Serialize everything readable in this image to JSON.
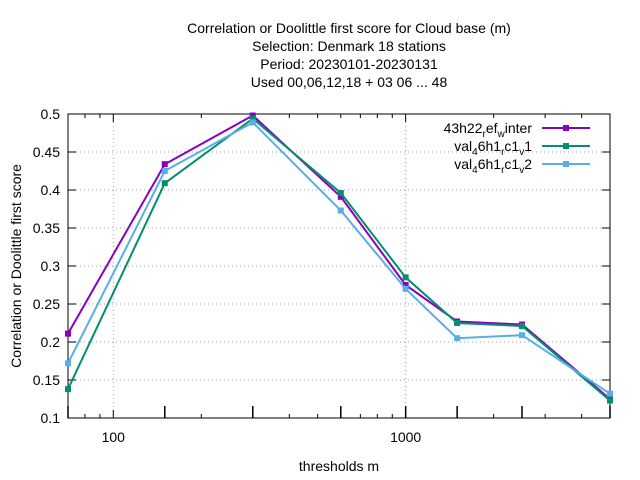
{
  "chart_data": {
    "type": "line",
    "title_lines": [
      "Correlation or Doolittle first score  for Cloud base (m)",
      "Selection: Denmark     18 stations",
      "Period: 20230101-20230131",
      "Used  00,06,12,18  + 03 06 ... 48"
    ],
    "xlabel": "thresholds m",
    "ylabel": "Correlation or Doolittle first score",
    "xscale": "log",
    "xlim": [
      70,
      5000
    ],
    "ylim": [
      0.1,
      0.5
    ],
    "x_ticks": [
      {
        "value": 100,
        "label": "100"
      },
      {
        "value": 1000,
        "label": "1000"
      }
    ],
    "y_ticks": [
      {
        "value": 0.1,
        "label": "0.1"
      },
      {
        "value": 0.15,
        "label": "0.15"
      },
      {
        "value": 0.2,
        "label": "0.2"
      },
      {
        "value": 0.25,
        "label": "0.25"
      },
      {
        "value": 0.3,
        "label": "0.3"
      },
      {
        "value": 0.35,
        "label": "0.35"
      },
      {
        "value": 0.4,
        "label": "0.4"
      },
      {
        "value": 0.45,
        "label": "0.45"
      },
      {
        "value": 0.5,
        "label": "0.5"
      }
    ],
    "grid": true,
    "legend_position": "top-right",
    "x": [
      70,
      150,
      300,
      600,
      1000,
      1500,
      2500,
      5000
    ],
    "series": [
      {
        "name_parts": [
          [
            "43h22",
            ""
          ],
          [
            "r",
            "sub"
          ],
          [
            "ef",
            ""
          ],
          [
            "w",
            "sub"
          ],
          [
            "inter",
            ""
          ]
        ],
        "color": "#8a00c0",
        "values": [
          0.211,
          0.434,
          0.498,
          0.391,
          0.275,
          0.227,
          0.223,
          0.125
        ]
      },
      {
        "name_parts": [
          [
            "val",
            ""
          ],
          [
            "4",
            "sub"
          ],
          [
            "6h1",
            ""
          ],
          [
            "r",
            "sub"
          ],
          [
            "c1",
            ""
          ],
          [
            "v",
            "sub"
          ],
          [
            "1",
            ""
          ]
        ],
        "color": "#00906c",
        "values": [
          0.138,
          0.409,
          0.494,
          0.396,
          0.285,
          0.225,
          0.221,
          0.123
        ]
      },
      {
        "name_parts": [
          [
            "val",
            ""
          ],
          [
            "4",
            "sub"
          ],
          [
            "6h1",
            ""
          ],
          [
            "r",
            "sub"
          ],
          [
            "c1",
            ""
          ],
          [
            "v",
            "sub"
          ],
          [
            "2",
            ""
          ]
        ],
        "color": "#56b0e6",
        "values": [
          0.172,
          0.425,
          0.489,
          0.373,
          0.27,
          0.205,
          0.209,
          0.132
        ]
      }
    ]
  }
}
